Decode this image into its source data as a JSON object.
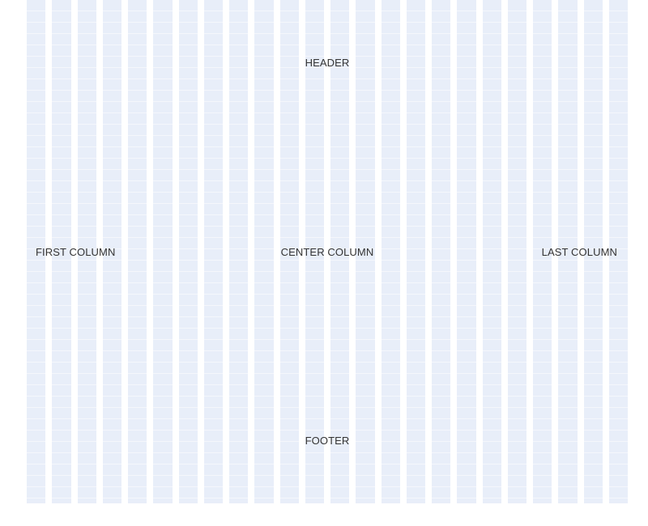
{
  "layout": {
    "header": "HEADER",
    "first_column": "FIRST COLUMN",
    "center_column": "CENTER COLUMN",
    "last_column": "LAST COLUMN",
    "footer": "FOOTER"
  },
  "grid": {
    "columns": 24,
    "column_color": "#e8eef9"
  }
}
